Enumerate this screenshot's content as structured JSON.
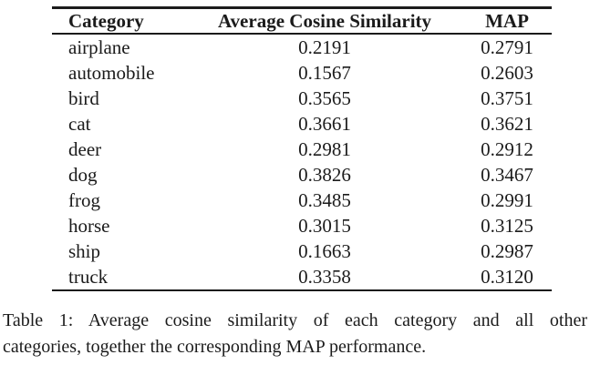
{
  "colors": {
    "background": "#ffffff",
    "text": "#1b1b1b",
    "rule": "#1b1b1b"
  },
  "table": {
    "columns": [
      "Category",
      "Average Cosine Similarity",
      "MAP"
    ],
    "column_keys": [
      "category",
      "avg_cosine_similarity",
      "map"
    ],
    "rows": [
      {
        "category": "airplane",
        "avg_cosine_similarity": "0.2191",
        "map": "0.2791"
      },
      {
        "category": "automobile",
        "avg_cosine_similarity": "0.1567",
        "map": "0.2603"
      },
      {
        "category": "bird",
        "avg_cosine_similarity": "0.3565",
        "map": "0.3751"
      },
      {
        "category": "cat",
        "avg_cosine_similarity": "0.3661",
        "map": "0.3621"
      },
      {
        "category": "deer",
        "avg_cosine_similarity": "0.2981",
        "map": "0.2912"
      },
      {
        "category": "dog",
        "avg_cosine_similarity": "0.3826",
        "map": "0.3467"
      },
      {
        "category": "frog",
        "avg_cosine_similarity": "0.3485",
        "map": "0.2991"
      },
      {
        "category": "horse",
        "avg_cosine_similarity": "0.3015",
        "map": "0.3125"
      },
      {
        "category": "ship",
        "avg_cosine_similarity": "0.1663",
        "map": "0.2987"
      },
      {
        "category": "truck",
        "avg_cosine_similarity": "0.3358",
        "map": "0.3120"
      }
    ]
  },
  "caption": {
    "line1": "Table 1: Average cosine similarity of each category and all other",
    "line2": "categories, together the corresponding MAP performance."
  }
}
